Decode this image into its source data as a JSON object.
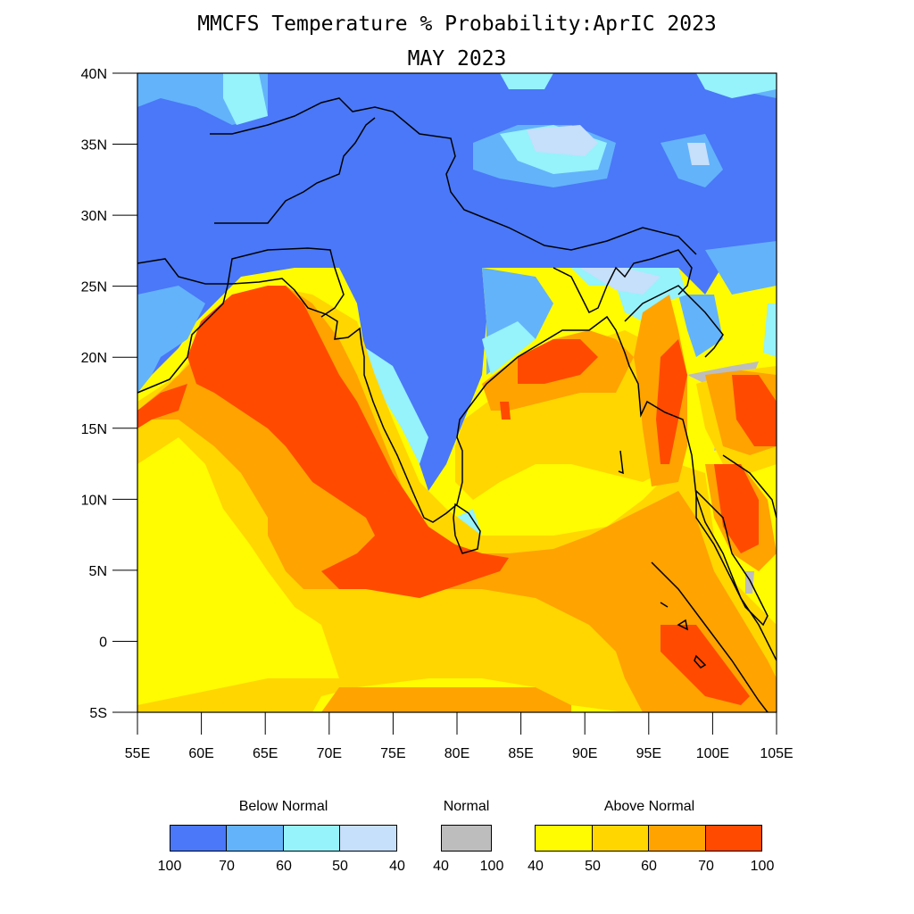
{
  "title": "MMCFS Temperature % Probability:AprIC 2023",
  "subtitle": "MAY 2023",
  "axes": {
    "lat_labels": [
      "40N",
      "35N",
      "30N",
      "25N",
      "20N",
      "15N",
      "10N",
      "5N",
      "0",
      "5S"
    ],
    "lon_labels": [
      "55E",
      "60E",
      "65E",
      "70E",
      "75E",
      "80E",
      "85E",
      "90E",
      "95E",
      "100E",
      "105E"
    ]
  },
  "colors": {
    "below_100_70": "#4a78f8",
    "below_70_60": "#63b3fb",
    "below_60_50": "#96f2fb",
    "below_50_40": "#c6dffb",
    "normal": "#bdbdbd",
    "above_40_50": "#fffb00",
    "above_50_60": "#ffd600",
    "above_60_70": "#ffa300",
    "above_70_100": "#ff4a00"
  },
  "legend": {
    "below_label": "Below Normal",
    "normal_label": "Normal",
    "above_label": "Above Normal",
    "below_ticks": [
      "100",
      "70",
      "60",
      "50",
      "40"
    ],
    "normal_ticks": [
      "40",
      "100"
    ],
    "above_ticks": [
      "40",
      "50",
      "60",
      "70",
      "100"
    ]
  }
}
